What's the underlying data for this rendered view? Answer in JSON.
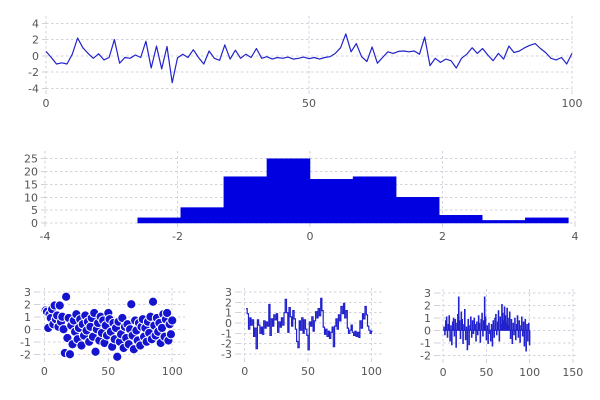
{
  "figure": {
    "description": "matplotlib-style figure with five subplots",
    "background": "#ffffff"
  },
  "colors": {
    "line_blue": "#2222cc",
    "fill_blue": "#0000e0",
    "scatter_blue": "#1414cf",
    "scatter_edge": "#ffffff",
    "grid": "#d2d2dc",
    "tick_label": "#555555"
  },
  "chart_data": [
    {
      "id": "top_line",
      "type": "line",
      "title": "",
      "xlabel": "",
      "ylabel": "",
      "xlim": [
        0,
        100
      ],
      "ylim": [
        -4.2,
        4.9
      ],
      "xticks": [
        0,
        50,
        100
      ],
      "yticks": [
        4,
        2,
        0,
        -2,
        -4
      ],
      "x_start": 0,
      "values": [
        0.55,
        -0.2,
        -1.0,
        -0.85,
        -1.0,
        0.2,
        2.2,
        1.0,
        0.3,
        -0.3,
        0.25,
        -0.5,
        -0.2,
        2.0,
        -0.9,
        -0.2,
        -0.3,
        0.1,
        -0.2,
        1.8,
        -1.5,
        1.2,
        -1.6,
        1.15,
        -3.3,
        -0.25,
        0.2,
        -0.2,
        0.75,
        -0.2,
        -1.0,
        0.6,
        -0.3,
        -0.55,
        1.35,
        -0.4,
        0.7,
        -0.3,
        0.2,
        -0.2,
        0.9,
        -0.3,
        -0.1,
        -0.4,
        -0.2,
        -0.3,
        -0.15,
        -0.4,
        -0.3,
        -0.15,
        -0.35,
        -0.2,
        -0.4,
        -0.2,
        -0.1,
        0.3,
        1.0,
        2.7,
        0.5,
        1.5,
        -0.1,
        -0.7,
        1.1,
        -0.9,
        -0.2,
        0.5,
        0.3,
        0.55,
        0.6,
        0.5,
        0.6,
        0.2,
        2.3,
        -1.2,
        -0.3,
        -0.8,
        -0.4,
        -0.6,
        -1.5,
        -0.3,
        0.2,
        1.0,
        0.3,
        0.9,
        0.1,
        -0.6,
        0.3,
        -0.4,
        1.2,
        0.4,
        0.6,
        1.0,
        1.3,
        1.5,
        0.9,
        0.4,
        -0.3,
        -0.5,
        -0.2,
        -1.0,
        0.3
      ]
    },
    {
      "id": "histogram",
      "type": "bar",
      "title": "",
      "xlabel": "",
      "ylabel": "",
      "xlim": [
        -4,
        4
      ],
      "ylim": [
        0,
        28
      ],
      "xticks": [
        -4,
        -2,
        0,
        2,
        4
      ],
      "yticks": [
        0,
        5,
        10,
        15,
        20,
        25
      ],
      "bin_edges": [
        -2.6,
        -1.95,
        -1.3,
        -0.65,
        0,
        0.65,
        1.3,
        1.95,
        2.6,
        3.25,
        3.9
      ],
      "counts": [
        2,
        6,
        18,
        25,
        17,
        18,
        10,
        3,
        1,
        2
      ]
    },
    {
      "id": "scatter",
      "type": "scatter",
      "title": "",
      "xlabel": "",
      "ylabel": "",
      "xlim": [
        -5,
        110
      ],
      "ylim": [
        -2.3,
        3.3
      ],
      "xticks": [
        0,
        50,
        100
      ],
      "yticks": [
        3,
        2,
        1,
        0,
        -1,
        -2
      ],
      "points": [
        [
          1,
          1.5
        ],
        [
          2,
          1.4
        ],
        [
          3,
          0.1
        ],
        [
          4,
          1.2
        ],
        [
          5,
          0.9
        ],
        [
          6,
          1.6
        ],
        [
          7,
          0.4
        ],
        [
          8,
          1.9
        ],
        [
          9,
          0.8
        ],
        [
          10,
          1.1
        ],
        [
          11,
          0.2
        ],
        [
          12,
          1.9
        ],
        [
          13,
          0.6
        ],
        [
          14,
          1.0
        ],
        [
          15,
          0.0
        ],
        [
          16,
          -1.9
        ],
        [
          17,
          2.6
        ],
        [
          18,
          -0.7
        ],
        [
          19,
          0.9
        ],
        [
          20,
          -2.0
        ],
        [
          21,
          0.3
        ],
        [
          22,
          -1.2
        ],
        [
          23,
          0.7
        ],
        [
          24,
          -0.2
        ],
        [
          25,
          1.2
        ],
        [
          26,
          -0.8
        ],
        [
          27,
          0.1
        ],
        [
          28,
          0.8
        ],
        [
          29,
          -1.3
        ],
        [
          30,
          0.4
        ],
        [
          31,
          -0.5
        ],
        [
          32,
          1.1
        ],
        [
          33,
          -0.1
        ],
        [
          34,
          0.6
        ],
        [
          35,
          -1.0
        ],
        [
          36,
          0.2
        ],
        [
          37,
          0.9
        ],
        [
          38,
          -0.6
        ],
        [
          39,
          1.3
        ],
        [
          40,
          -1.8
        ],
        [
          41,
          0.0
        ],
        [
          42,
          0.5
        ],
        [
          43,
          -0.9
        ],
        [
          44,
          1.0
        ],
        [
          45,
          -0.3
        ],
        [
          46,
          0.7
        ],
        [
          47,
          -1.1
        ],
        [
          48,
          0.3
        ],
        [
          49,
          -0.5
        ],
        [
          50,
          1.3
        ],
        [
          51,
          0.8
        ],
        [
          52,
          -0.2
        ],
        [
          53,
          -1.4
        ],
        [
          54,
          0.5
        ],
        [
          55,
          -0.8
        ],
        [
          56,
          0.1
        ],
        [
          57,
          -2.2
        ],
        [
          58,
          0.6
        ],
        [
          59,
          -1.0
        ],
        [
          60,
          -0.4
        ],
        [
          61,
          0.9
        ],
        [
          62,
          -1.5
        ],
        [
          63,
          0.2
        ],
        [
          64,
          -0.7
        ],
        [
          65,
          0.4
        ],
        [
          66,
          -1.2
        ],
        [
          67,
          0.0
        ],
        [
          68,
          2.0
        ],
        [
          69,
          -0.5
        ],
        [
          70,
          -1.6
        ],
        [
          71,
          0.7
        ],
        [
          72,
          -0.1
        ],
        [
          73,
          -0.9
        ],
        [
          74,
          0.5
        ],
        [
          75,
          -1.3
        ],
        [
          76,
          0.2
        ],
        [
          77,
          0.8
        ],
        [
          78,
          -0.6
        ],
        [
          79,
          0.1
        ],
        [
          80,
          -1.0
        ],
        [
          81,
          0.6
        ],
        [
          82,
          -0.3
        ],
        [
          83,
          1.0
        ],
        [
          84,
          -0.8
        ],
        [
          85,
          2.2
        ],
        [
          86,
          0.3
        ],
        [
          87,
          -0.5
        ],
        [
          88,
          0.9
        ],
        [
          89,
          -0.2
        ],
        [
          90,
          0.5
        ],
        [
          91,
          -1.1
        ],
        [
          92,
          0.1
        ],
        [
          93,
          1.2
        ],
        [
          94,
          -0.6
        ],
        [
          95,
          0.8
        ],
        [
          96,
          1.3
        ],
        [
          97,
          -0.9
        ],
        [
          98,
          0.4
        ],
        [
          99,
          -0.4
        ],
        [
          100,
          0.7
        ]
      ]
    },
    {
      "id": "step",
      "type": "line",
      "style": "step",
      "title": "",
      "xlabel": "",
      "ylabel": "",
      "xlim": [
        -4.5,
        110
      ],
      "ylim": [
        -3.4,
        3.4
      ],
      "xticks": [
        0,
        50,
        100
      ],
      "yticks": [
        3,
        2,
        1,
        0,
        -1,
        -2,
        -3
      ],
      "x_start": 1,
      "values": [
        1.4,
        0.9,
        -0.6,
        0.5,
        -0.2,
        0.3,
        -1.3,
        -0.5,
        -2.5,
        0.3,
        -0.2,
        -1.0,
        -0.4,
        -1.1,
        0.2,
        -0.5,
        0.1,
        -0.3,
        1.8,
        -1.2,
        0.4,
        -0.3,
        0.8,
        0.3,
        0.9,
        -0.9,
        0.1,
        -0.4,
        0.5,
        -0.2,
        1.0,
        2.3,
        1.0,
        -0.9,
        1.5,
        0.6,
        -0.3,
        1.2,
        0.4,
        -0.6,
        -1.8,
        -2.4,
        0.2,
        -0.7,
        0.5,
        -1.0,
        0.3,
        -0.6,
        -1.2,
        -2.6,
        0.1,
        -0.3,
        0.6,
        -0.8,
        0.2,
        1.1,
        0.5,
        1.4,
        0.7,
        2.4,
        1.2,
        -0.4,
        -1.1,
        -0.6,
        -1.3,
        -0.8,
        -1.5,
        -0.9,
        -0.4,
        -2.3,
        -0.3,
        0.4,
        -0.6,
        0.8,
        0.2,
        1.6,
        0.9,
        1.9,
        0.5,
        1.2,
        -0.5,
        -1.0,
        -0.7,
        -0.2,
        -0.9,
        -1.2,
        -0.8,
        -1.3,
        -0.9,
        -1.4,
        0.2,
        -0.5,
        0.9,
        0.4,
        1.6,
        0.8,
        -0.3,
        -0.7,
        -1.0,
        -0.8
      ]
    },
    {
      "id": "stem",
      "type": "bar",
      "style": "stem",
      "title": "",
      "xlabel": "",
      "ylabel": "",
      "xlim": [
        -6,
        156
      ],
      "ylim": [
        -2.3,
        3.3
      ],
      "xticks": [
        0,
        50,
        100,
        150
      ],
      "yticks": [
        3,
        2,
        1,
        0,
        -1,
        -2
      ],
      "x_start": 1,
      "values": [
        0.3,
        -0.4,
        0.8,
        1.1,
        -0.6,
        0.5,
        1.2,
        -0.9,
        0.4,
        -1.2,
        0.7,
        1.0,
        -0.5,
        0.9,
        -1.4,
        0.6,
        1.3,
        2.7,
        0.8,
        -0.7,
        1.5,
        0.9,
        -1.1,
        0.5,
        1.7,
        -0.8,
        0.3,
        -1.6,
        0.9,
        -1.2,
        0.4,
        1.1,
        -0.6,
        0.8,
        -0.3,
        1.0,
        0.5,
        -0.9,
        0.7,
        -0.4,
        1.2,
        0.6,
        -1.0,
        0.9,
        1.4,
        -0.5,
        0.8,
        2.7,
        1.1,
        -0.8,
        0.4,
        -1.1,
        0.6,
        -0.3,
        -0.9,
        0.5,
        -1.3,
        0.8,
        -0.6,
        1.0,
        1.3,
        -0.4,
        0.7,
        1.6,
        -0.9,
        1.1,
        0.5,
        2.1,
        1.4,
        0.8,
        1.9,
        1.2,
        0.6,
        1.8,
        1.0,
        0.4,
        1.5,
        -0.7,
        0.9,
        -1.1,
        0.6,
        -0.4,
        1.0,
        -0.8,
        0.5,
        1.2,
        -0.6,
        0.8,
        -1.0,
        0.4,
        1.1,
        -0.5,
        0.7,
        -1.3,
        0.9,
        -1.7,
        0.5,
        -0.9,
        0.6,
        -1.2
      ]
    }
  ]
}
